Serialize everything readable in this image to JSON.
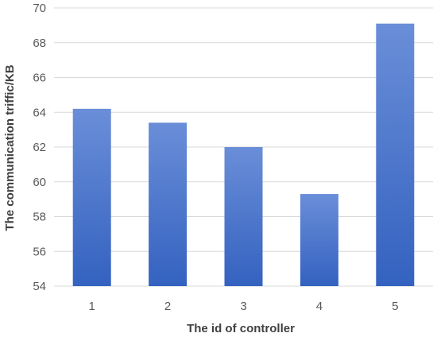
{
  "chart_data": {
    "type": "bar",
    "categories": [
      "1",
      "2",
      "3",
      "4",
      "5"
    ],
    "values": [
      64.2,
      63.4,
      62.0,
      59.3,
      69.1
    ],
    "title": "",
    "xlabel": "The id of controller",
    "ylabel": "The communication triffic/KB",
    "ylim": [
      54,
      70
    ],
    "yticks": [
      "54",
      "56",
      "58",
      "60",
      "62",
      "64",
      "66",
      "68",
      "70"
    ],
    "grid": true,
    "legend": "none",
    "colors": {
      "bar_top": "#6a8ed8",
      "bar_bottom": "#3462c0"
    }
  }
}
